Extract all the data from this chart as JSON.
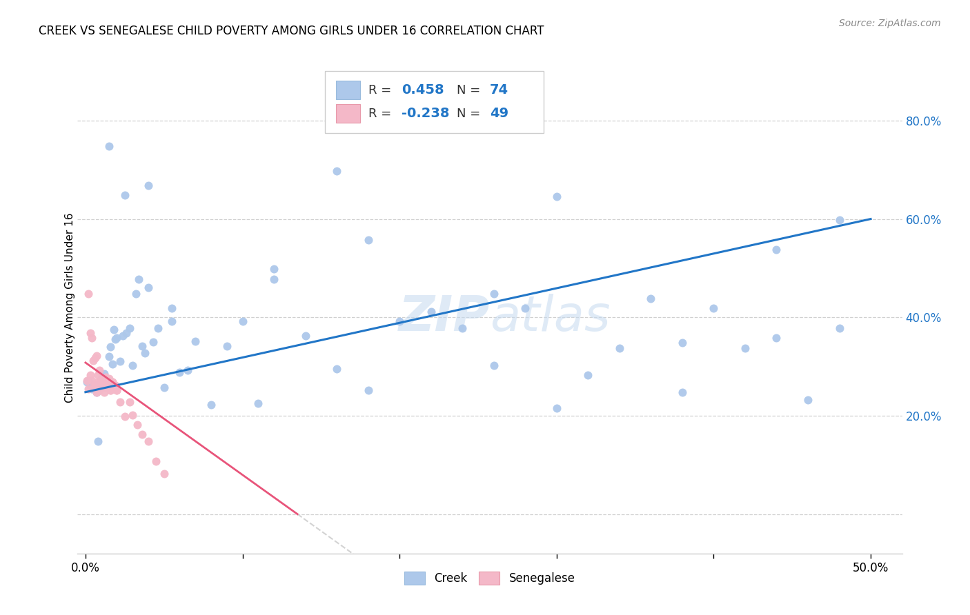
{
  "title": "CREEK VS SENEGALESE CHILD POVERTY AMONG GIRLS UNDER 16 CORRELATION CHART",
  "source": "Source: ZipAtlas.com",
  "ylabel": "Child Poverty Among Girls Under 16",
  "xlim": [
    -0.005,
    0.52
  ],
  "ylim": [
    -0.08,
    0.92
  ],
  "xticks": [
    0.0,
    0.1,
    0.2,
    0.3,
    0.4,
    0.5
  ],
  "yticks": [
    0.0,
    0.2,
    0.4,
    0.6,
    0.8
  ],
  "creek_color": "#adc8ea",
  "senegalese_color": "#f4b8c8",
  "trend_creek_color": "#2176c7",
  "trend_senegalese_color": "#e8547a",
  "watermark": "ZIPatlas",
  "creek_x": [
    0.001,
    0.002,
    0.003,
    0.004,
    0.005,
    0.006,
    0.007,
    0.008,
    0.009,
    0.01,
    0.011,
    0.012,
    0.013,
    0.014,
    0.015,
    0.016,
    0.017,
    0.018,
    0.019,
    0.02,
    0.022,
    0.024,
    0.026,
    0.028,
    0.03,
    0.032,
    0.034,
    0.036,
    0.038,
    0.04,
    0.043,
    0.046,
    0.05,
    0.055,
    0.06,
    0.065,
    0.07,
    0.08,
    0.09,
    0.1,
    0.11,
    0.12,
    0.14,
    0.16,
    0.18,
    0.2,
    0.22,
    0.24,
    0.26,
    0.28,
    0.3,
    0.32,
    0.34,
    0.36,
    0.38,
    0.4,
    0.42,
    0.44,
    0.46,
    0.48,
    0.015,
    0.04,
    0.16,
    0.3,
    0.48,
    0.025,
    0.12,
    0.26,
    0.44,
    0.008,
    0.055,
    0.18,
    0.38
  ],
  "creek_y": [
    0.268,
    0.272,
    0.26,
    0.255,
    0.265,
    0.258,
    0.248,
    0.262,
    0.255,
    0.275,
    0.272,
    0.285,
    0.265,
    0.26,
    0.32,
    0.34,
    0.305,
    0.375,
    0.355,
    0.358,
    0.31,
    0.362,
    0.368,
    0.378,
    0.302,
    0.448,
    0.478,
    0.342,
    0.328,
    0.46,
    0.35,
    0.378,
    0.258,
    0.392,
    0.288,
    0.292,
    0.352,
    0.222,
    0.342,
    0.392,
    0.225,
    0.478,
    0.362,
    0.295,
    0.252,
    0.392,
    0.412,
    0.378,
    0.302,
    0.418,
    0.215,
    0.282,
    0.338,
    0.438,
    0.348,
    0.418,
    0.338,
    0.538,
    0.232,
    0.378,
    0.748,
    0.668,
    0.698,
    0.645,
    0.598,
    0.648,
    0.498,
    0.448,
    0.358,
    0.148,
    0.418,
    0.558,
    0.248
  ],
  "senegalese_x": [
    0.001,
    0.002,
    0.003,
    0.004,
    0.005,
    0.006,
    0.007,
    0.008,
    0.009,
    0.01,
    0.011,
    0.012,
    0.013,
    0.014,
    0.015,
    0.016,
    0.017,
    0.018,
    0.019,
    0.02,
    0.022,
    0.025,
    0.028,
    0.03,
    0.033,
    0.036,
    0.04,
    0.045,
    0.05,
    0.002,
    0.003,
    0.004,
    0.005,
    0.006,
    0.007,
    0.008,
    0.009,
    0.01,
    0.011,
    0.012,
    0.013,
    0.014,
    0.015,
    0.016,
    0.017,
    0.018,
    0.019,
    0.02
  ],
  "senegalese_y": [
    0.272,
    0.255,
    0.282,
    0.272,
    0.258,
    0.265,
    0.248,
    0.268,
    0.252,
    0.272,
    0.258,
    0.248,
    0.278,
    0.262,
    0.272,
    0.252,
    0.268,
    0.258,
    0.262,
    0.252,
    0.228,
    0.198,
    0.228,
    0.202,
    0.182,
    0.162,
    0.148,
    0.108,
    0.082,
    0.448,
    0.368,
    0.358,
    0.312,
    0.318,
    0.322,
    0.282,
    0.292,
    0.272,
    0.265,
    0.258,
    0.275,
    0.262,
    0.275,
    0.252,
    0.268,
    0.258,
    0.262,
    0.252
  ],
  "creek_trend_x0": 0.0,
  "creek_trend_x1": 0.5,
  "creek_trend_y0": 0.248,
  "creek_trend_y1": 0.6,
  "sene_trend_x0": 0.0,
  "sene_trend_x1": 0.135,
  "sene_trend_y0": 0.308,
  "sene_trend_y1": 0.0
}
